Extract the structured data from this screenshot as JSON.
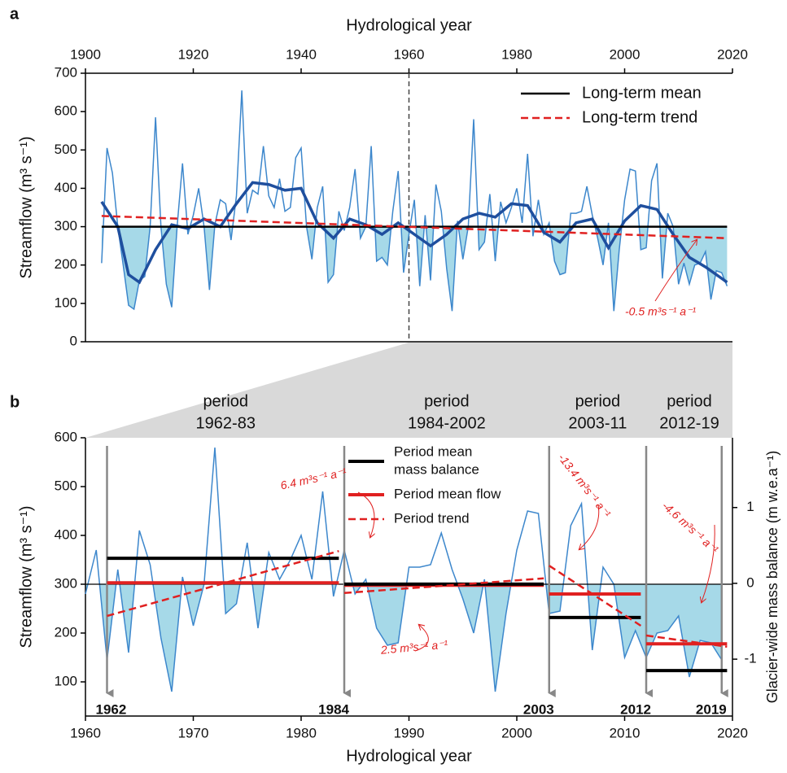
{
  "chart_data": [
    {
      "type": "line",
      "panel_label": "a",
      "xlabel": "Hydrological year",
      "ylabel": "Streamflow (m³ s⁻¹)",
      "xlim": [
        1900,
        2020
      ],
      "xticks": [
        1900,
        1920,
        1940,
        1960,
        1980,
        2000,
        2020
      ],
      "ylim": [
        0,
        700
      ],
      "yticks": [
        0,
        100,
        200,
        300,
        400,
        500,
        600,
        700
      ],
      "reference_x": 1960,
      "shade_below_mean": true,
      "shade_color": "#a6d9e8",
      "x": [
        1903,
        1904,
        1905,
        1906,
        1907,
        1908,
        1909,
        1910,
        1911,
        1912,
        1913,
        1914,
        1915,
        1916,
        1917,
        1918,
        1919,
        1920,
        1921,
        1922,
        1923,
        1924,
        1925,
        1926,
        1927,
        1928,
        1929,
        1930,
        1931,
        1932,
        1933,
        1934,
        1935,
        1936,
        1937,
        1938,
        1939,
        1940,
        1941,
        1942,
        1943,
        1944,
        1945,
        1946,
        1947,
        1948,
        1949,
        1950,
        1951,
        1952,
        1953,
        1954,
        1955,
        1956,
        1957,
        1958,
        1959,
        1960,
        1961,
        1962,
        1963,
        1964,
        1965,
        1966,
        1967,
        1968,
        1969,
        1970,
        1971,
        1972,
        1973,
        1974,
        1975,
        1976,
        1977,
        1978,
        1979,
        1980,
        1981,
        1982,
        1983,
        1984,
        1985,
        1986,
        1987,
        1988,
        1989,
        1990,
        1991,
        1992,
        1993,
        1994,
        1995,
        1996,
        1997,
        1998,
        1999,
        2000,
        2001,
        2002,
        2003,
        2004,
        2005,
        2006,
        2007,
        2008,
        2009,
        2010,
        2011,
        2012,
        2013,
        2014,
        2015,
        2016,
        2017,
        2018,
        2019
      ],
      "series": [
        {
          "color": "#3d87cc",
          "values": [
            205,
            505,
            440,
            300,
            200,
            95,
            85,
            160,
            170,
            300,
            585,
            300,
            150,
            90,
            300,
            465,
            280,
            330,
            400,
            300,
            135,
            305,
            370,
            360,
            265,
            380,
            655,
            335,
            395,
            385,
            510,
            380,
            350,
            425,
            340,
            350,
            480,
            505,
            300,
            215,
            350,
            405,
            155,
            175,
            340,
            290,
            350,
            450,
            270,
            300,
            510,
            210,
            220,
            200,
            340,
            445,
            180,
            280,
            370,
            145,
            330,
            160,
            410,
            340,
            190,
            80,
            315,
            215,
            300,
            580,
            240,
            260,
            385,
            210,
            365,
            310,
            350,
            400,
            310,
            490,
            275,
            370,
            280,
            310,
            210,
            175,
            180,
            335,
            335,
            340,
            405,
            330,
            270,
            200,
            310,
            80,
            240,
            370,
            450,
            445,
            240,
            245,
            420,
            465,
            165,
            335,
            300,
            150,
            205,
            150,
            200,
            205,
            235,
            110,
            185,
            180,
            145
          ]
        },
        {
          "color": "#1f4f9e",
          "smoothed": true,
          "x": [
            1903,
            1906,
            1908,
            1910,
            1913,
            1916,
            1919,
            1922,
            1925,
            1928,
            1931,
            1934,
            1937,
            1940,
            1943,
            1946,
            1949,
            1952,
            1955,
            1958,
            1961,
            1964,
            1967,
            1970,
            1973,
            1976,
            1979,
            1982,
            1985,
            1988,
            1991,
            1994,
            1997,
            2000,
            2003,
            2006,
            2009,
            2012,
            2015,
            2019
          ],
          "values": [
            365,
            300,
            175,
            155,
            240,
            305,
            295,
            320,
            300,
            360,
            415,
            410,
            395,
            400,
            310,
            270,
            320,
            305,
            280,
            310,
            280,
            250,
            280,
            320,
            335,
            325,
            360,
            355,
            285,
            260,
            310,
            320,
            245,
            315,
            355,
            345,
            280,
            220,
            195,
            155
          ]
        },
        {
          "name": "Long-term mean",
          "color": "#000000",
          "mean": true,
          "x": [
            1903,
            2019
          ],
          "values": [
            300,
            300
          ]
        },
        {
          "name": "Long-term trend",
          "color": "#e02020",
          "dashed": true,
          "x": [
            1903,
            2019
          ],
          "values": [
            328,
            270
          ]
        }
      ],
      "annotations": [
        "-0.5 m³s⁻¹ a⁻¹"
      ]
    },
    {
      "type": "line",
      "panel_label": "b",
      "xlabel": "Hydrological year",
      "ylabel": "Streamflow (m³ s⁻¹)",
      "y2label": "Glacier-wide mass balance  (m w.e.a⁻¹)",
      "xlim": [
        1960,
        2020
      ],
      "xticks": [
        1960,
        1970,
        1980,
        1990,
        2000,
        2010,
        2020
      ],
      "ylim": [
        30,
        600
      ],
      "yticks": [
        100,
        200,
        300,
        400,
        500,
        600
      ],
      "y2lim": [
        -1.75,
        1.92
      ],
      "y2ticks": [
        -1,
        0,
        1
      ],
      "shade_below_mean": true,
      "shade_color": "#a6d9e8",
      "x": [
        1960,
        1961,
        1962,
        1963,
        1964,
        1965,
        1966,
        1967,
        1968,
        1969,
        1970,
        1971,
        1972,
        1973,
        1974,
        1975,
        1976,
        1977,
        1978,
        1979,
        1980,
        1981,
        1982,
        1983,
        1984,
        1985,
        1986,
        1987,
        1988,
        1989,
        1990,
        1991,
        1992,
        1993,
        1994,
        1995,
        1996,
        1997,
        1998,
        1999,
        2000,
        2001,
        2002,
        2003,
        2004,
        2005,
        2006,
        2007,
        2008,
        2009,
        2010,
        2011,
        2012,
        2013,
        2014,
        2015,
        2016,
        2017,
        2018,
        2019
      ],
      "series": [
        {
          "color": "#3d87cc",
          "values": [
            280,
            370,
            145,
            330,
            160,
            410,
            340,
            190,
            80,
            315,
            215,
            300,
            580,
            240,
            260,
            385,
            210,
            365,
            310,
            350,
            400,
            310,
            490,
            275,
            370,
            280,
            310,
            210,
            175,
            180,
            335,
            335,
            340,
            405,
            330,
            270,
            200,
            310,
            80,
            240,
            370,
            450,
            445,
            240,
            245,
            420,
            465,
            165,
            335,
            300,
            150,
            205,
            150,
            200,
            205,
            235,
            110,
            185,
            180,
            145
          ]
        },
        {
          "color": "#000000",
          "mean": true,
          "x": [
            1960,
            2020
          ],
          "values": [
            300,
            300
          ]
        }
      ],
      "legend": [
        {
          "lines": [
            "Period mean",
            "mass balance"
          ],
          "color": "#000000"
        },
        {
          "lines": [
            "Period mean flow"
          ],
          "color": "#e02020"
        },
        {
          "lines": [
            "Period trend"
          ],
          "color": "#e02020",
          "dashed": true
        }
      ],
      "periods": [
        {
          "lines": [
            "period",
            "1962-83"
          ],
          "start": 1962,
          "end": 1983,
          "mass_balance": 0.33,
          "mean_flow": 303,
          "trend": [
            235,
            368
          ],
          "trend_label": "6.4 m³s⁻¹ a⁻¹"
        },
        {
          "lines": [
            "period",
            "1984-2002"
          ],
          "start": 1984,
          "end": 2002,
          "mass_balance": -0.01,
          "mean_flow": 298,
          "trend": [
            282,
            312
          ],
          "trend_label": "2.5 m³s⁻¹ a⁻¹"
        },
        {
          "lines": [
            "period",
            "2003-11"
          ],
          "start": 2003,
          "end": 2011,
          "mass_balance": -0.45,
          "mean_flow": 280,
          "trend": [
            338,
            215
          ],
          "trend_label": "-13.4 m³s⁻¹ a⁻¹"
        },
        {
          "lines": [
            "period",
            "2012-19"
          ],
          "start": 2012,
          "end": 2019,
          "mass_balance": -1.15,
          "mean_flow": 178,
          "trend": [
            195,
            172
          ],
          "trend_label": "-4.6 m³s⁻¹ a⁻¹"
        }
      ],
      "arrows": [
        1962,
        1984,
        2003,
        2012,
        2019
      ]
    }
  ]
}
